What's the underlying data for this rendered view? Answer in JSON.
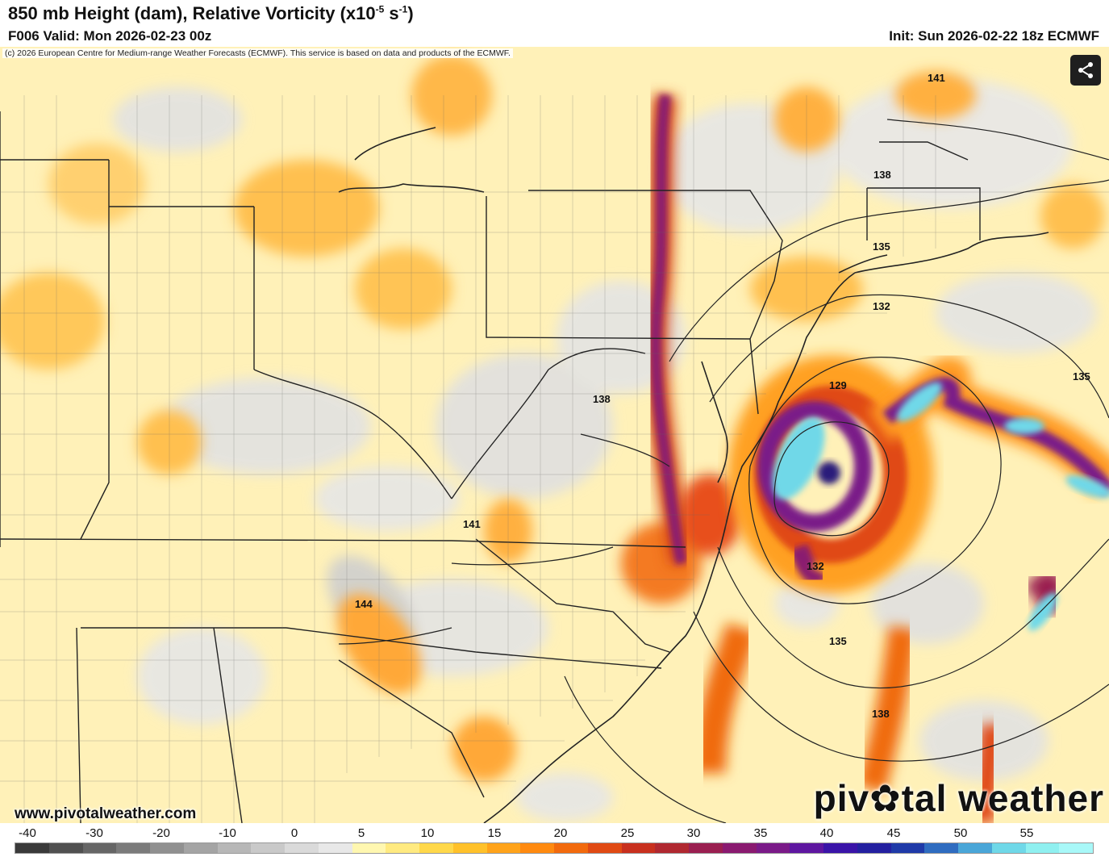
{
  "header": {
    "title_main": "850 mb Height (dam), Relative Vorticity (x10",
    "title_exp": "-5",
    "title_mid": " s",
    "title_exp2": "-1",
    "title_end": ")",
    "valid": "F006 Valid: Mon 2026-02-23 00z",
    "init": "Init: Sun 2026-02-22 18z ECMWF"
  },
  "map": {
    "copyright": "(c) 2026 European Centre for Medium-range Weather Forecasts (ECMWF). This service is based on data and products of the ECMWF.",
    "website": "www.pivotalweather.com",
    "logo_left": "piv",
    "logo_right": "tal weather",
    "share_icon": "share-icon",
    "height_contour_labels": [
      "141",
      "138",
      "135",
      "132",
      "129",
      "135",
      "138",
      "141",
      "144",
      "132",
      "135",
      "138"
    ]
  },
  "colorbar": {
    "tick_labels": [
      "-40",
      "-30",
      "-20",
      "-10",
      "0",
      "5",
      "10",
      "15",
      "20",
      "25",
      "30",
      "35",
      "40",
      "45",
      "50",
      "55"
    ],
    "colors": [
      "#3a3a3a",
      "#505050",
      "#666666",
      "#7b7b7b",
      "#909090",
      "#a4a4a4",
      "#b7b7b7",
      "#c9c9c9",
      "#dadada",
      "#e8e8e8",
      "#fff7b0",
      "#ffea80",
      "#ffd84a",
      "#ffc12a",
      "#ffa31a",
      "#ff8a10",
      "#f26a0d",
      "#e04a13",
      "#c8301e",
      "#b02830",
      "#9a1f50",
      "#8a1a70",
      "#7a1a88",
      "#5e16a0",
      "#3a14a8",
      "#2420a0",
      "#1f3aa8",
      "#2f6cc0",
      "#4aa6d8",
      "#6fd8e8",
      "#8ff0f0",
      "#a8f8f8"
    ]
  }
}
